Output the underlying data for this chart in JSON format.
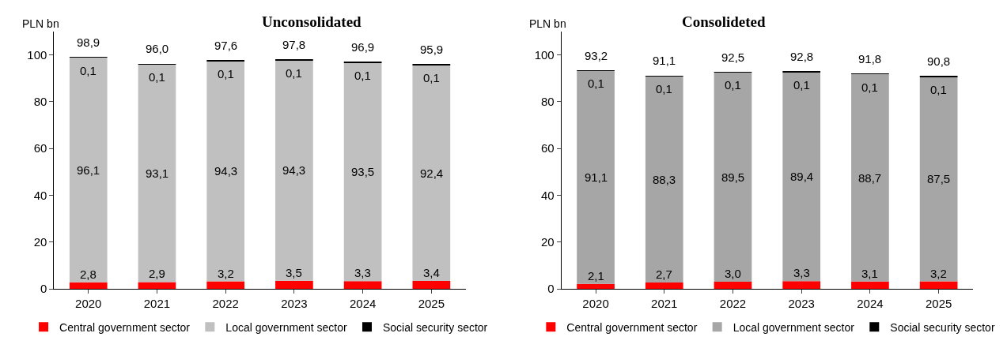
{
  "chart_data": [
    {
      "type": "bar",
      "title": "Unconsolidated",
      "ylabel": "PLN bn",
      "stacked": true,
      "categories": [
        "2020",
        "2021",
        "2022",
        "2023",
        "2024",
        "2025"
      ],
      "ylim": [
        0,
        110
      ],
      "yticks": [
        0,
        20,
        40,
        60,
        80,
        100
      ],
      "legend": "bottom",
      "series": [
        {
          "name": "Central government sector",
          "color": "#ff0000",
          "values": [
            2.8,
            2.9,
            3.2,
            3.5,
            3.3,
            3.4
          ],
          "value_labels": [
            "2,8",
            "2,9",
            "3,2",
            "3,5",
            "3,3",
            "3,4"
          ]
        },
        {
          "name": "Local government sector",
          "color": "#c0c0c0",
          "values": [
            96.1,
            93.1,
            94.3,
            94.3,
            93.5,
            92.4
          ],
          "value_labels": [
            "96,1",
            "93,1",
            "94,3",
            "94,3",
            "93,5",
            "92,4"
          ]
        },
        {
          "name": "Social security sector",
          "color": "#000000",
          "values": [
            0.1,
            0.1,
            0.1,
            0.1,
            0.1,
            0.1
          ],
          "value_labels": [
            "0,1",
            "0,1",
            "0,1",
            "0,1",
            "0,1",
            "0,1"
          ]
        }
      ],
      "totals": [
        "98,9",
        "96,0",
        "97,6",
        "97,8",
        "96,9",
        "95,9"
      ]
    },
    {
      "type": "bar",
      "title": "Consolideted",
      "ylabel": "PLN bn",
      "stacked": true,
      "categories": [
        "2020",
        "2021",
        "2022",
        "2023",
        "2024",
        "2025"
      ],
      "ylim": [
        0,
        110
      ],
      "yticks": [
        0,
        20,
        40,
        60,
        80,
        100
      ],
      "legend": "bottom",
      "series": [
        {
          "name": "Central government sector",
          "color": "#ff0000",
          "values": [
            2.1,
            2.7,
            3.0,
            3.3,
            3.1,
            3.2
          ],
          "value_labels": [
            "2,1",
            "2,7",
            "3,0",
            "3,3",
            "3,1",
            "3,2"
          ]
        },
        {
          "name": "Local government sector",
          "color": "#a6a6a6",
          "values": [
            91.1,
            88.3,
            89.5,
            89.4,
            88.7,
            87.5
          ],
          "value_labels": [
            "91,1",
            "88,3",
            "89,5",
            "89,4",
            "88,7",
            "87,5"
          ]
        },
        {
          "name": "Social security sector",
          "color": "#000000",
          "values": [
            0.1,
            0.1,
            0.1,
            0.1,
            0.1,
            0.1
          ],
          "value_labels": [
            "0,1",
            "0,1",
            "0,1",
            "0,1",
            "0,1",
            "0,1"
          ]
        }
      ],
      "totals": [
        "93,2",
        "91,1",
        "92,5",
        "92,8",
        "91,8",
        "90,8"
      ]
    }
  ]
}
